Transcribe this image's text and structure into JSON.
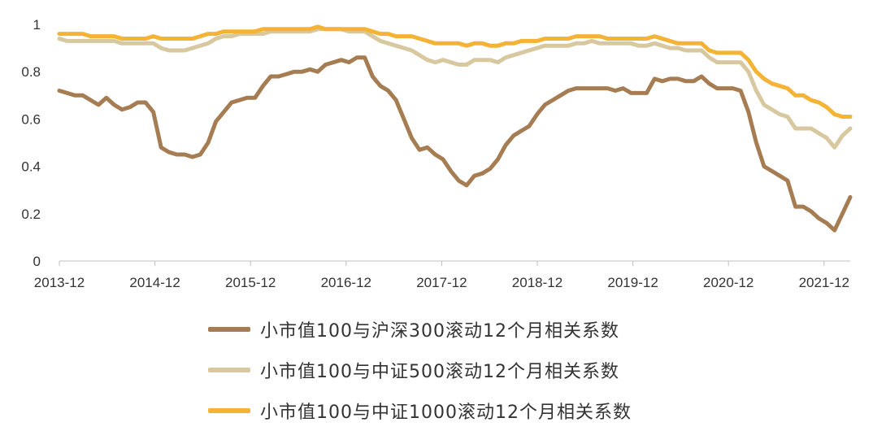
{
  "chart_data": {
    "type": "line",
    "title": "",
    "xlabel": "",
    "ylabel": "",
    "ylim": [
      0,
      1
    ],
    "yticks": [
      0,
      0.2,
      0.4,
      0.6,
      0.8,
      1
    ],
    "ytick_labels": [
      "0",
      "0.2",
      "0.4",
      "0.6",
      "0.8",
      "1"
    ],
    "xticks": [
      "2013-12",
      "2014-12",
      "2015-12",
      "2016-12",
      "2017-12",
      "2018-12",
      "2019-12",
      "2020-12",
      "2021-12"
    ],
    "xlim": [
      0,
      99
    ],
    "grid": false,
    "legend_position": "bottom",
    "series": [
      {
        "name": "小市值100与沪深300滚动12个月相关系数",
        "color": "#a67c52",
        "values": [
          0.72,
          0.71,
          0.7,
          0.7,
          0.68,
          0.66,
          0.69,
          0.66,
          0.64,
          0.65,
          0.67,
          0.67,
          0.63,
          0.48,
          0.46,
          0.45,
          0.45,
          0.44,
          0.45,
          0.5,
          0.59,
          0.63,
          0.67,
          0.68,
          0.69,
          0.69,
          0.74,
          0.78,
          0.78,
          0.79,
          0.8,
          0.8,
          0.81,
          0.8,
          0.83,
          0.84,
          0.85,
          0.84,
          0.86,
          0.86,
          0.78,
          0.74,
          0.72,
          0.68,
          0.6,
          0.52,
          0.47,
          0.48,
          0.45,
          0.43,
          0.38,
          0.34,
          0.32,
          0.36,
          0.37,
          0.39,
          0.43,
          0.49,
          0.53,
          0.55,
          0.57,
          0.62,
          0.66,
          0.68,
          0.7,
          0.72,
          0.73,
          0.73,
          0.73,
          0.73,
          0.73,
          0.72,
          0.73,
          0.71,
          0.71,
          0.71,
          0.77,
          0.76,
          0.77,
          0.77,
          0.76,
          0.76,
          0.78,
          0.75,
          0.73,
          0.73,
          0.73,
          0.72,
          0.63,
          0.5,
          0.4,
          0.38,
          0.36,
          0.34,
          0.23,
          0.23,
          0.21,
          0.18,
          0.16,
          0.13,
          0.2,
          0.27
        ]
      },
      {
        "name": "小市值100与中证500滚动12个月相关系数",
        "color": "#d7c8a0",
        "values": [
          0.94,
          0.93,
          0.93,
          0.93,
          0.93,
          0.93,
          0.93,
          0.93,
          0.92,
          0.92,
          0.92,
          0.92,
          0.92,
          0.9,
          0.89,
          0.89,
          0.89,
          0.9,
          0.91,
          0.92,
          0.94,
          0.95,
          0.95,
          0.96,
          0.96,
          0.96,
          0.96,
          0.97,
          0.97,
          0.97,
          0.97,
          0.97,
          0.97,
          0.98,
          0.98,
          0.98,
          0.98,
          0.97,
          0.97,
          0.97,
          0.95,
          0.93,
          0.92,
          0.91,
          0.9,
          0.89,
          0.87,
          0.85,
          0.84,
          0.85,
          0.84,
          0.83,
          0.83,
          0.85,
          0.85,
          0.85,
          0.84,
          0.86,
          0.87,
          0.88,
          0.89,
          0.9,
          0.91,
          0.91,
          0.91,
          0.91,
          0.92,
          0.92,
          0.93,
          0.92,
          0.92,
          0.92,
          0.92,
          0.92,
          0.91,
          0.91,
          0.92,
          0.91,
          0.9,
          0.9,
          0.89,
          0.89,
          0.89,
          0.86,
          0.84,
          0.84,
          0.84,
          0.84,
          0.8,
          0.72,
          0.66,
          0.64,
          0.62,
          0.61,
          0.56,
          0.56,
          0.56,
          0.54,
          0.52,
          0.48,
          0.53,
          0.56
        ]
      },
      {
        "name": "小市值100与中证1000滚动12个月相关系数",
        "color": "#f5b335",
        "values": [
          0.96,
          0.96,
          0.96,
          0.96,
          0.95,
          0.95,
          0.95,
          0.95,
          0.94,
          0.94,
          0.94,
          0.94,
          0.95,
          0.94,
          0.94,
          0.94,
          0.94,
          0.94,
          0.95,
          0.96,
          0.96,
          0.97,
          0.97,
          0.97,
          0.97,
          0.97,
          0.98,
          0.98,
          0.98,
          0.98,
          0.98,
          0.98,
          0.98,
          0.99,
          0.98,
          0.98,
          0.98,
          0.98,
          0.98,
          0.98,
          0.97,
          0.96,
          0.96,
          0.95,
          0.95,
          0.95,
          0.94,
          0.93,
          0.92,
          0.92,
          0.92,
          0.92,
          0.91,
          0.92,
          0.92,
          0.91,
          0.91,
          0.92,
          0.92,
          0.93,
          0.93,
          0.93,
          0.94,
          0.94,
          0.94,
          0.94,
          0.95,
          0.95,
          0.95,
          0.95,
          0.94,
          0.94,
          0.94,
          0.94,
          0.94,
          0.94,
          0.95,
          0.94,
          0.93,
          0.92,
          0.92,
          0.92,
          0.92,
          0.89,
          0.88,
          0.88,
          0.88,
          0.88,
          0.85,
          0.8,
          0.77,
          0.75,
          0.74,
          0.73,
          0.7,
          0.7,
          0.68,
          0.67,
          0.65,
          0.62,
          0.61,
          0.61
        ]
      }
    ]
  }
}
